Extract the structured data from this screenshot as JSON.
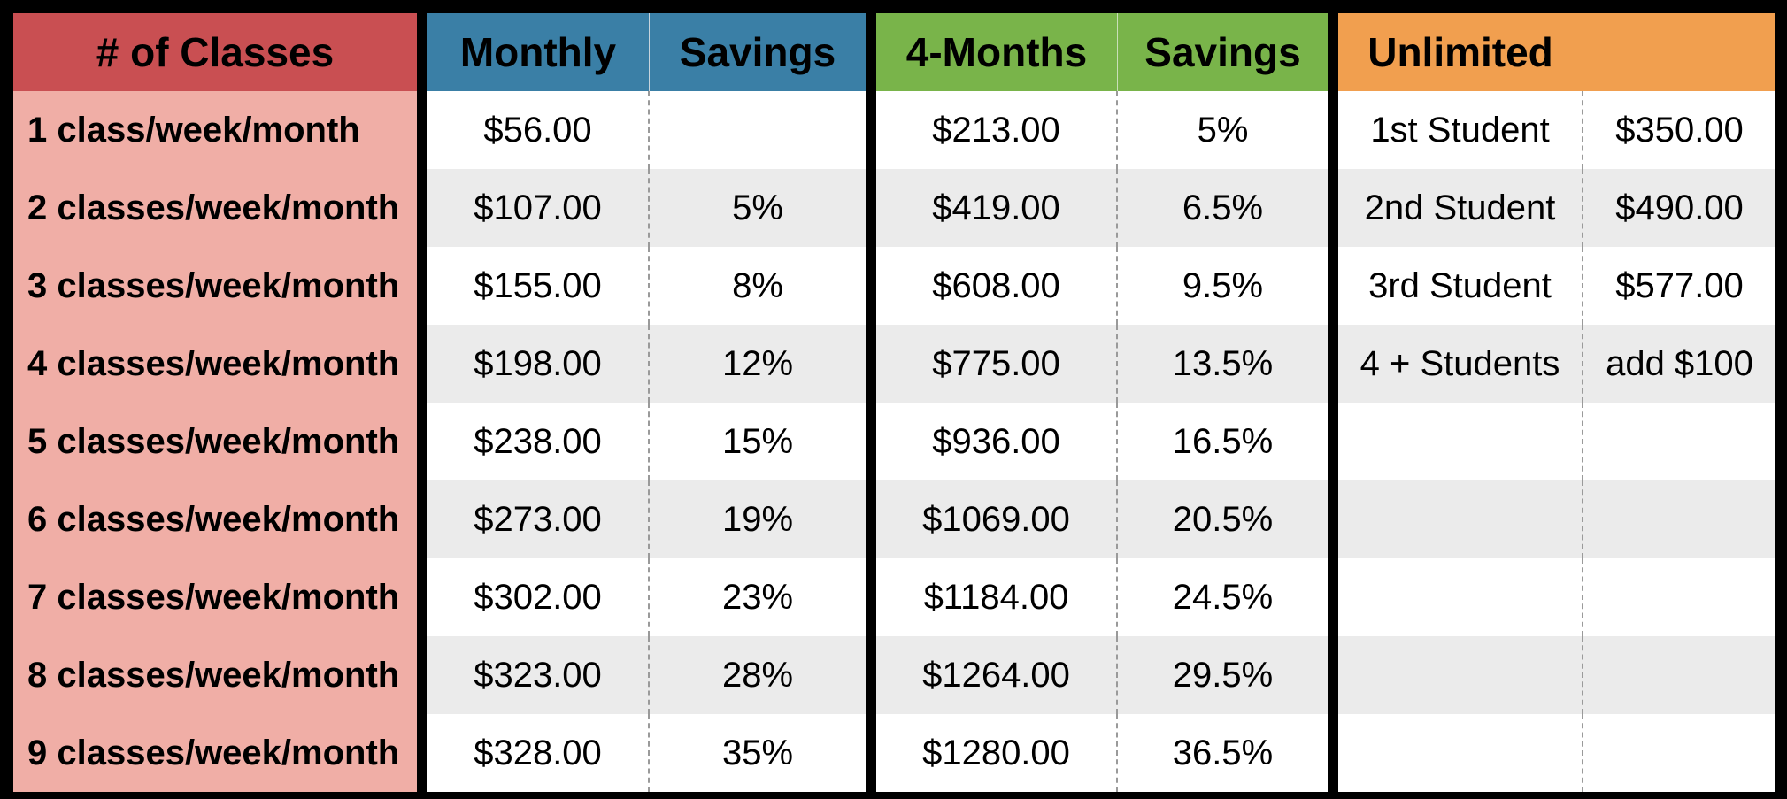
{
  "colors": {
    "label_header": "#c94f52",
    "label_cell": "#f0aea6",
    "monthly_header": "#3a7fa6",
    "four_months_header": "#79b44a",
    "unlimited_header": "#f19f4f",
    "row_white": "#ffffff",
    "row_gray": "#ebebeb",
    "border": "#000000"
  },
  "headers": {
    "classes": "# of Classes",
    "monthly": "Monthly",
    "monthly_savings": "Savings",
    "four_months": "4-Months",
    "four_months_savings": "Savings",
    "unlimited": "Unlimited",
    "unlimited_price": ""
  },
  "rows": [
    {
      "label": "1 class/week/month",
      "monthly": "$56.00",
      "monthly_savings": "",
      "four_months": "$213.00",
      "four_months_savings": "5%",
      "unlimited_tier": "1st Student",
      "unlimited_price": "$350.00"
    },
    {
      "label": "2 classes/week/month",
      "monthly": "$107.00",
      "monthly_savings": "5%",
      "four_months": "$419.00",
      "four_months_savings": "6.5%",
      "unlimited_tier": "2nd Student",
      "unlimited_price": "$490.00"
    },
    {
      "label": "3 classes/week/month",
      "monthly": "$155.00",
      "monthly_savings": "8%",
      "four_months": "$608.00",
      "four_months_savings": "9.5%",
      "unlimited_tier": "3rd Student",
      "unlimited_price": "$577.00"
    },
    {
      "label": "4 classes/week/month",
      "monthly": "$198.00",
      "monthly_savings": "12%",
      "four_months": "$775.00",
      "four_months_savings": "13.5%",
      "unlimited_tier": "4 + Students",
      "unlimited_price": "add $100"
    },
    {
      "label": "5 classes/week/month",
      "monthly": "$238.00",
      "monthly_savings": "15%",
      "four_months": "$936.00",
      "four_months_savings": "16.5%",
      "unlimited_tier": "",
      "unlimited_price": ""
    },
    {
      "label": "6 classes/week/month",
      "monthly": "$273.00",
      "monthly_savings": "19%",
      "four_months": "$1069.00",
      "four_months_savings": "20.5%",
      "unlimited_tier": "",
      "unlimited_price": ""
    },
    {
      "label": "7 classes/week/month",
      "monthly": "$302.00",
      "monthly_savings": "23%",
      "four_months": "$1184.00",
      "four_months_savings": "24.5%",
      "unlimited_tier": "",
      "unlimited_price": ""
    },
    {
      "label": "8 classes/week/month",
      "monthly": "$323.00",
      "monthly_savings": "28%",
      "four_months": "$1264.00",
      "four_months_savings": "29.5%",
      "unlimited_tier": "",
      "unlimited_price": ""
    },
    {
      "label": "9 classes/week/month",
      "monthly": "$328.00",
      "monthly_savings": "35%",
      "four_months": "$1280.00",
      "four_months_savings": "36.5%",
      "unlimited_tier": "",
      "unlimited_price": ""
    }
  ]
}
